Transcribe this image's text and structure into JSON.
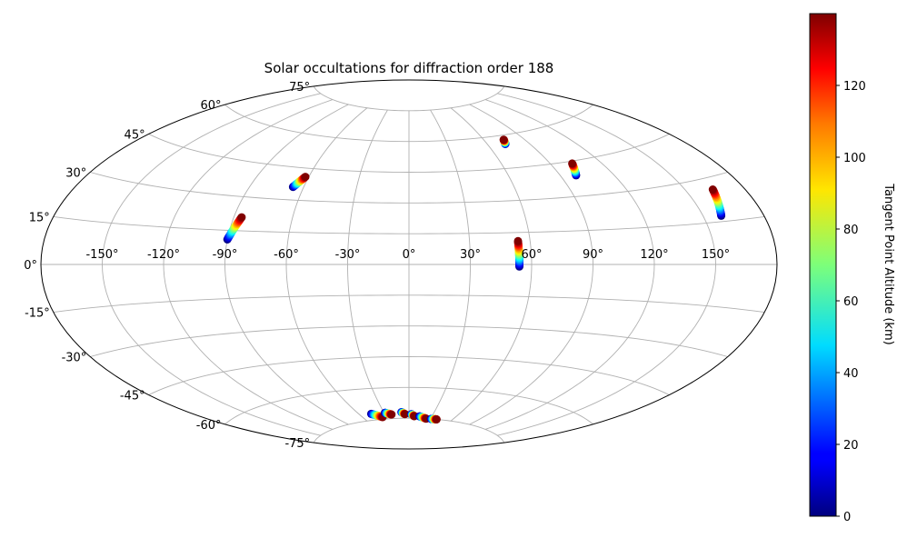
{
  "chart_data": {
    "type": "scatter",
    "projection": "Aitoff",
    "title": "Solar occultations for diffraction order 188",
    "x_tick_labels": [
      "-150°",
      "-120°",
      "-90°",
      "-60°",
      "-30°",
      "0°",
      "30°",
      "60°",
      "90°",
      "120°",
      "150°"
    ],
    "y_tick_labels": [
      "-75°",
      "-60°",
      "-45°",
      "-30°",
      "-15°",
      "0°",
      "15°",
      "30°",
      "45°",
      "60°",
      "75°"
    ],
    "grid": true,
    "colorbar": {
      "label": "Tangent Point Altitude (km)",
      "colormap": "jet",
      "range": [
        0,
        140
      ],
      "tick_labels": [
        "0",
        "20",
        "40",
        "60",
        "80",
        "100",
        "120"
      ]
    },
    "series": [
      {
        "lon_range": [
          -90,
          -86
        ],
        "lat_range": [
          11,
          21
        ],
        "alt_range": [
          0,
          140
        ]
      },
      {
        "lon_range": [
          -66,
          -62
        ],
        "lat_range": [
          36,
          41
        ],
        "alt_range": [
          0,
          140
        ]
      },
      {
        "lon_range": [
          54,
          54
        ],
        "lat_range": [
          -1,
          11
        ],
        "alt_range": [
          0,
          140
        ]
      },
      {
        "lon_range": [
          99,
          103
        ],
        "lat_range": [
          39,
          44
        ],
        "alt_range": [
          0,
          140
        ]
      },
      {
        "lon_range": [
          73,
          75
        ],
        "lat_range": [
          56,
          58
        ],
        "alt_range": [
          0,
          140
        ]
      },
      {
        "lon_range": [
          159,
          164
        ],
        "lat_range": [
          17,
          26
        ],
        "alt_range": [
          0,
          140
        ]
      },
      {
        "lon_range": [
          -46,
          -35
        ],
        "lat_range": [
          -72,
          -74
        ],
        "alt_range": [
          0,
          140
        ]
      },
      {
        "lon_range": [
          -29,
          -22
        ],
        "lat_range": [
          -72,
          -73
        ],
        "alt_range": [
          0,
          140
        ]
      },
      {
        "lon_range": [
          -9,
          -5
        ],
        "lat_range": [
          -72,
          -73
        ],
        "alt_range": [
          0,
          140
        ]
      },
      {
        "lon_range": [
          3,
          7
        ],
        "lat_range": [
          -73,
          -74
        ],
        "alt_range": [
          0,
          140
        ]
      },
      {
        "lon_range": [
          14,
          24
        ],
        "lat_range": [
          -74,
          -75
        ],
        "alt_range": [
          0,
          140
        ]
      },
      {
        "lon_range": [
          31,
          39
        ],
        "lat_range": [
          -75,
          -75
        ],
        "alt_range": [
          0,
          140
        ]
      }
    ]
  }
}
